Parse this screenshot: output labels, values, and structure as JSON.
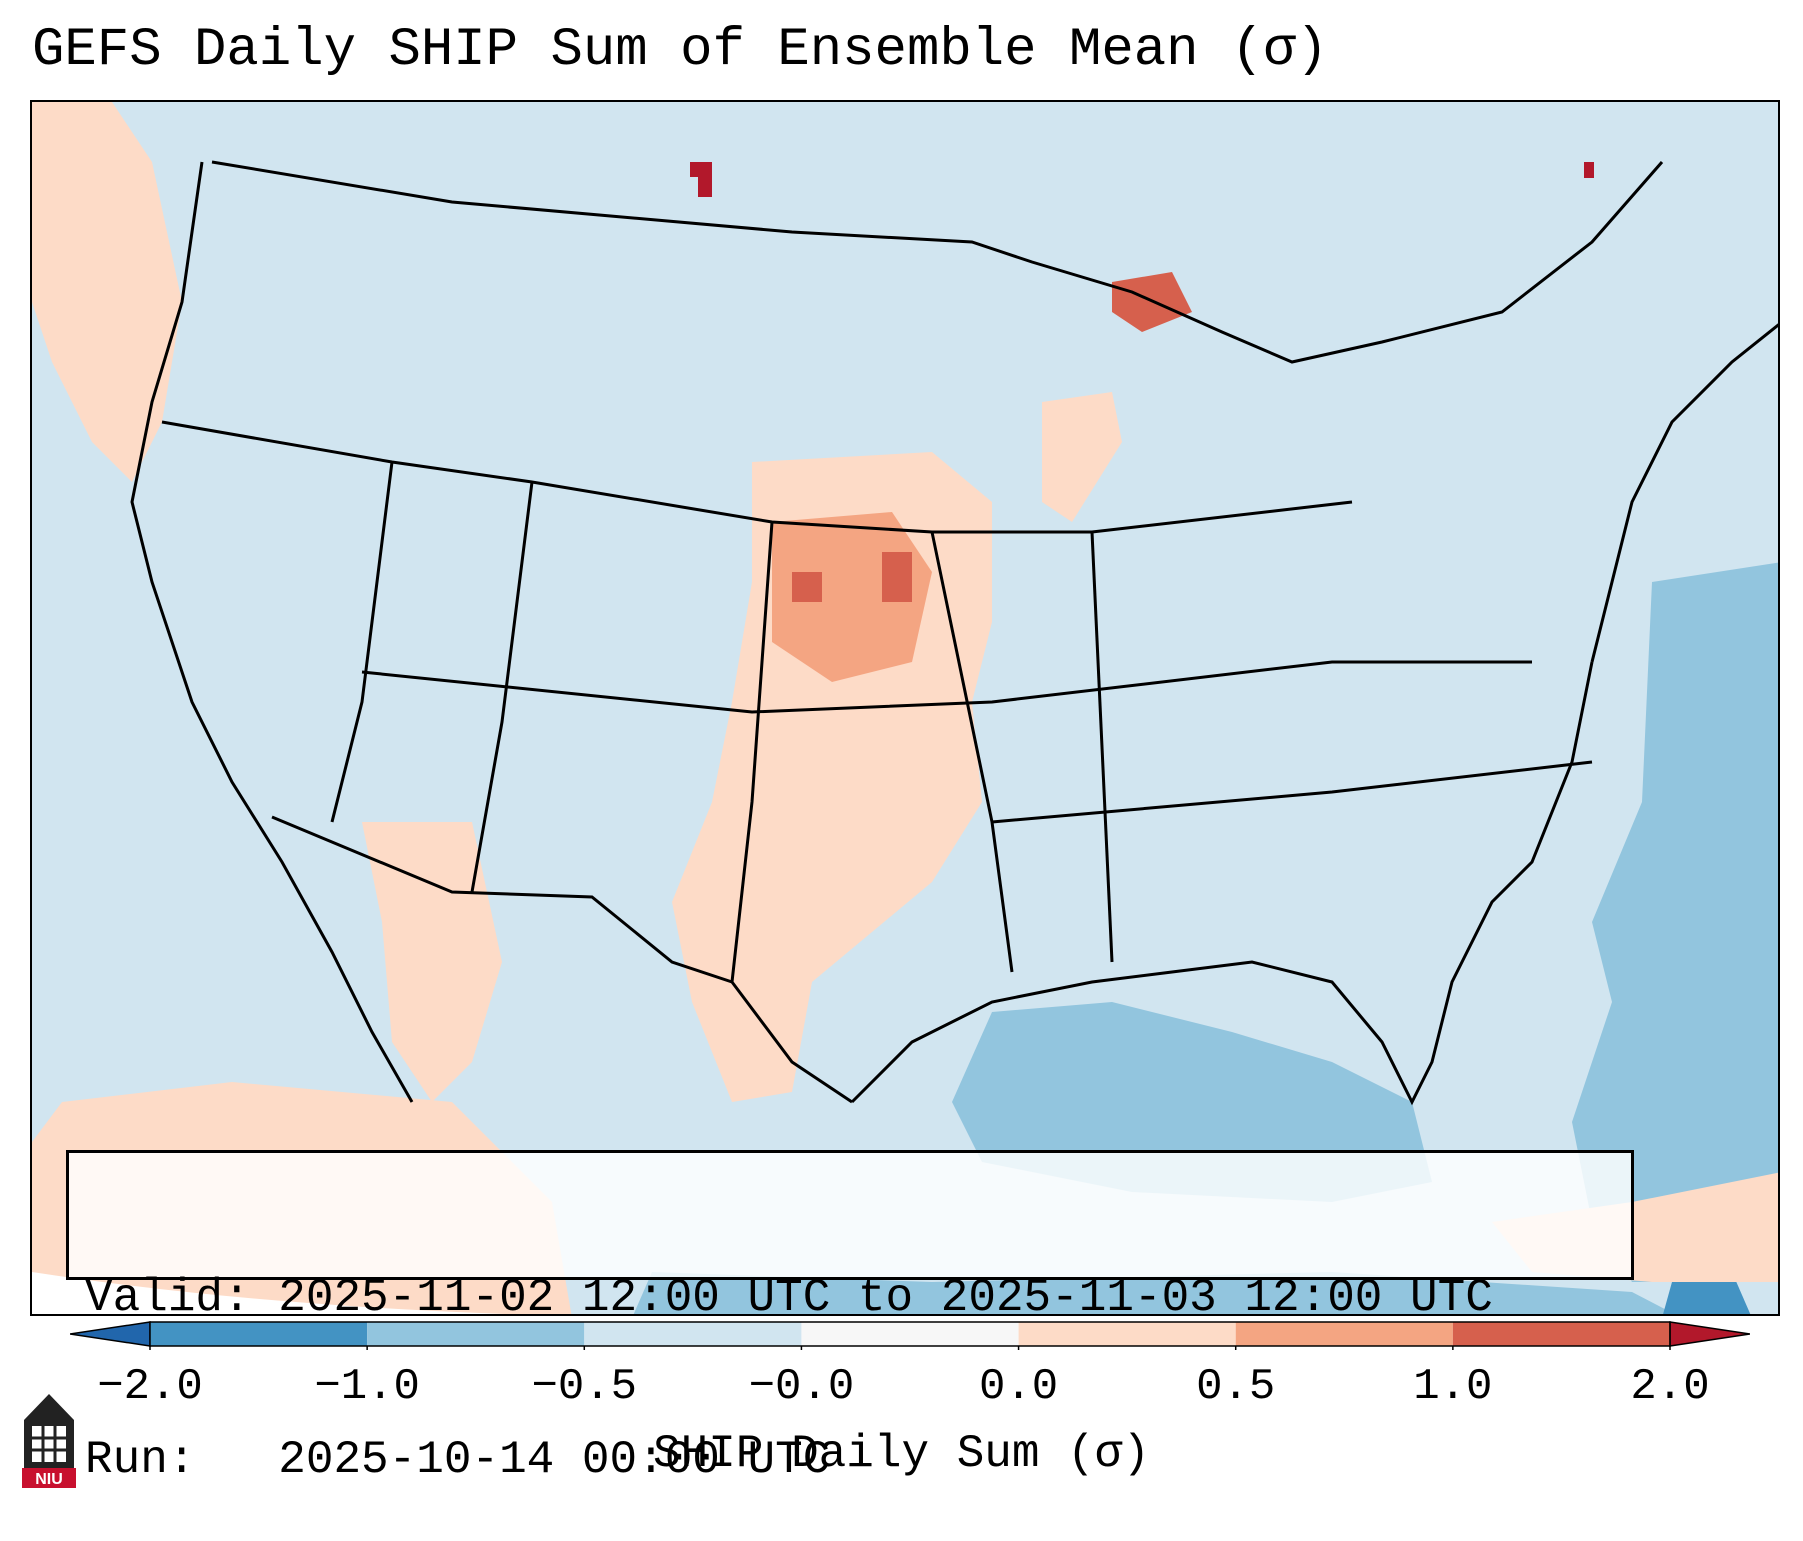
{
  "title": "GEFS Daily SHIP Sum of Ensemble Mean (σ)",
  "info": {
    "valid_line": "Valid: 2025-11-02 12:00 UTC to 2025-11-03 12:00 UTC",
    "run_line": "Run:   2025-10-14 00:00 UTC"
  },
  "colorbar": {
    "label": "SHIP Daily Sum (σ)",
    "ticks": [
      "−2.0",
      "−1.0",
      "−0.5",
      "−0.0",
      "0.0",
      "0.5",
      "1.0",
      "2.0"
    ],
    "bins": [
      {
        "color": "#4393c3"
      },
      {
        "color": "#92c5de"
      },
      {
        "color": "#d1e5f0"
      },
      {
        "color": "#f7f7f7"
      },
      {
        "color": "#fddbc7"
      },
      {
        "color": "#f4a582"
      },
      {
        "color": "#d6604d"
      }
    ],
    "extend_low_color": "#2166ac",
    "extend_high_color": "#b2182b"
  },
  "logo": {
    "text": "NIU",
    "color": "#c8102e"
  },
  "map": {
    "background_color": "#d1e5f0",
    "region": "Contiguous United States"
  }
}
